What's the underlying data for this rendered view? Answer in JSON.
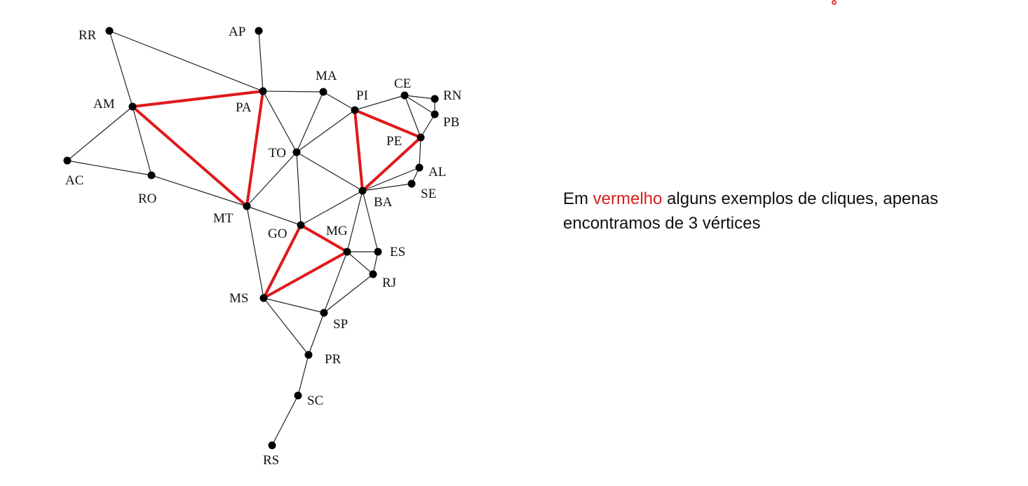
{
  "colors": {
    "edge": "#222222",
    "clique_edge": "#e0191b",
    "node": "#000000",
    "highlight_text": "#d61f1f"
  },
  "graph": {
    "nodes": [
      {
        "id": "RR",
        "label": "RR"
      },
      {
        "id": "AP",
        "label": "AP"
      },
      {
        "id": "AM",
        "label": "AM"
      },
      {
        "id": "PA",
        "label": "PA"
      },
      {
        "id": "MA",
        "label": "MA"
      },
      {
        "id": "PI",
        "label": "PI"
      },
      {
        "id": "CE",
        "label": "CE"
      },
      {
        "id": "RN",
        "label": "RN"
      },
      {
        "id": "PB",
        "label": "PB"
      },
      {
        "id": "PE",
        "label": "PE"
      },
      {
        "id": "AL",
        "label": "AL"
      },
      {
        "id": "SE",
        "label": "SE"
      },
      {
        "id": "BA",
        "label": "BA"
      },
      {
        "id": "TO",
        "label": "TO"
      },
      {
        "id": "AC",
        "label": "AC"
      },
      {
        "id": "RO",
        "label": "RO"
      },
      {
        "id": "MT",
        "label": "MT"
      },
      {
        "id": "GO",
        "label": "GO"
      },
      {
        "id": "MG",
        "label": "MG"
      },
      {
        "id": "ES",
        "label": "ES"
      },
      {
        "id": "RJ",
        "label": "RJ"
      },
      {
        "id": "MS",
        "label": "MS"
      },
      {
        "id": "SP",
        "label": "SP"
      },
      {
        "id": "PR",
        "label": "PR"
      },
      {
        "id": "SC",
        "label": "SC"
      },
      {
        "id": "RS",
        "label": "RS"
      }
    ],
    "edges": [
      [
        "RR",
        "AM"
      ],
      [
        "RR",
        "PA"
      ],
      [
        "AP",
        "PA"
      ],
      [
        "AM",
        "PA"
      ],
      [
        "AM",
        "AC"
      ],
      [
        "AM",
        "RO"
      ],
      [
        "AM",
        "MT"
      ],
      [
        "AC",
        "RO"
      ],
      [
        "RO",
        "MT"
      ],
      [
        "PA",
        "MA"
      ],
      [
        "PA",
        "TO"
      ],
      [
        "PA",
        "MT"
      ],
      [
        "MA",
        "TO"
      ],
      [
        "MA",
        "PI"
      ],
      [
        "PI",
        "TO"
      ],
      [
        "PI",
        "CE"
      ],
      [
        "PI",
        "PE"
      ],
      [
        "PI",
        "BA"
      ],
      [
        "CE",
        "RN"
      ],
      [
        "CE",
        "PB"
      ],
      [
        "CE",
        "PE"
      ],
      [
        "RN",
        "PB"
      ],
      [
        "PB",
        "PE"
      ],
      [
        "PE",
        "AL"
      ],
      [
        "PE",
        "BA"
      ],
      [
        "AL",
        "SE"
      ],
      [
        "AL",
        "BA"
      ],
      [
        "SE",
        "BA"
      ],
      [
        "TO",
        "BA"
      ],
      [
        "TO",
        "MT"
      ],
      [
        "TO",
        "GO"
      ],
      [
        "MT",
        "GO"
      ],
      [
        "MT",
        "MS"
      ],
      [
        "GO",
        "BA"
      ],
      [
        "GO",
        "MG"
      ],
      [
        "GO",
        "MS"
      ],
      [
        "BA",
        "MG"
      ],
      [
        "BA",
        "ES"
      ],
      [
        "MG",
        "ES"
      ],
      [
        "MG",
        "RJ"
      ],
      [
        "MG",
        "SP"
      ],
      [
        "MG",
        "MS"
      ],
      [
        "ES",
        "RJ"
      ],
      [
        "RJ",
        "SP"
      ],
      [
        "MS",
        "SP"
      ],
      [
        "MS",
        "PR"
      ],
      [
        "SP",
        "PR"
      ],
      [
        "PR",
        "SC"
      ],
      [
        "SC",
        "RS"
      ]
    ],
    "cliques": [
      [
        "AM",
        "PA",
        "MT"
      ],
      [
        "PI",
        "PE",
        "BA"
      ],
      [
        "GO",
        "MG",
        "MS"
      ]
    ]
  },
  "caption": {
    "prefix": "Em ",
    "highlight": "vermelho",
    "suffix": " alguns exemplos de cliques, apenas encontramos de 3 vértices"
  }
}
